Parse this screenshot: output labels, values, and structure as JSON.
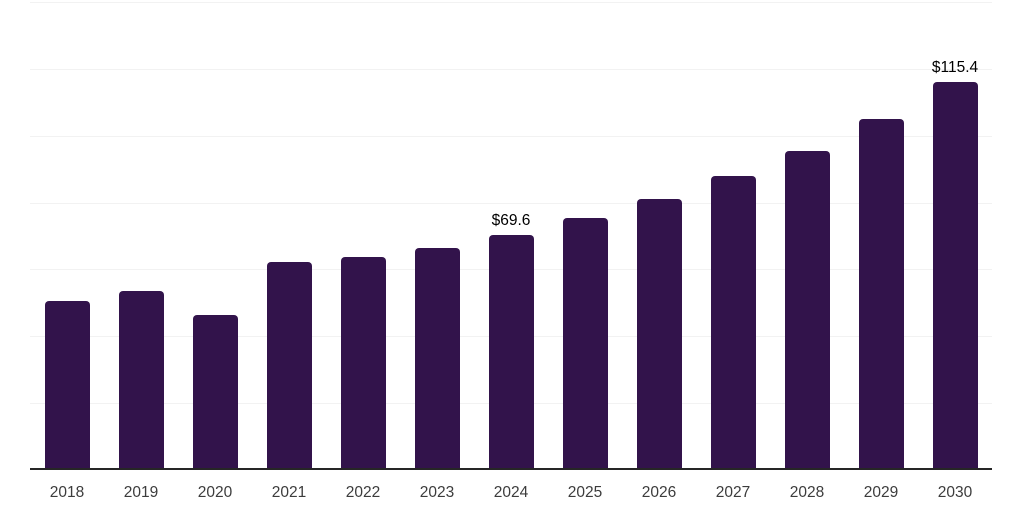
{
  "chart": {
    "background_color": "#ffffff",
    "bar_color": "#32134b",
    "axis_line_color": "#262626",
    "gridline_color": "#f2f2f2",
    "tick_label_color": "#3c3c3c",
    "data_label_color": "#000000"
  },
  "chart_data": {
    "type": "bar",
    "title": "",
    "xlabel": "",
    "ylabel": "",
    "categories": [
      "2018",
      "2019",
      "2020",
      "2021",
      "2022",
      "2023",
      "2024",
      "2025",
      "2026",
      "2027",
      "2028",
      "2029",
      "2030"
    ],
    "values": [
      50.0,
      53.0,
      45.7,
      61.6,
      63.1,
      65.8,
      69.6,
      74.8,
      80.4,
      87.3,
      94.9,
      104.5,
      115.4
    ],
    "data_labels": [
      "",
      "",
      "",
      "",
      "",
      "",
      "$69.6",
      "",
      "",
      "",
      "",
      "",
      "$115.4"
    ],
    "ylim": [
      0,
      140
    ],
    "grid": true,
    "grid_step": 20,
    "y_axis_tick_labels_visible": false,
    "legend": false,
    "legend_position": "none"
  }
}
